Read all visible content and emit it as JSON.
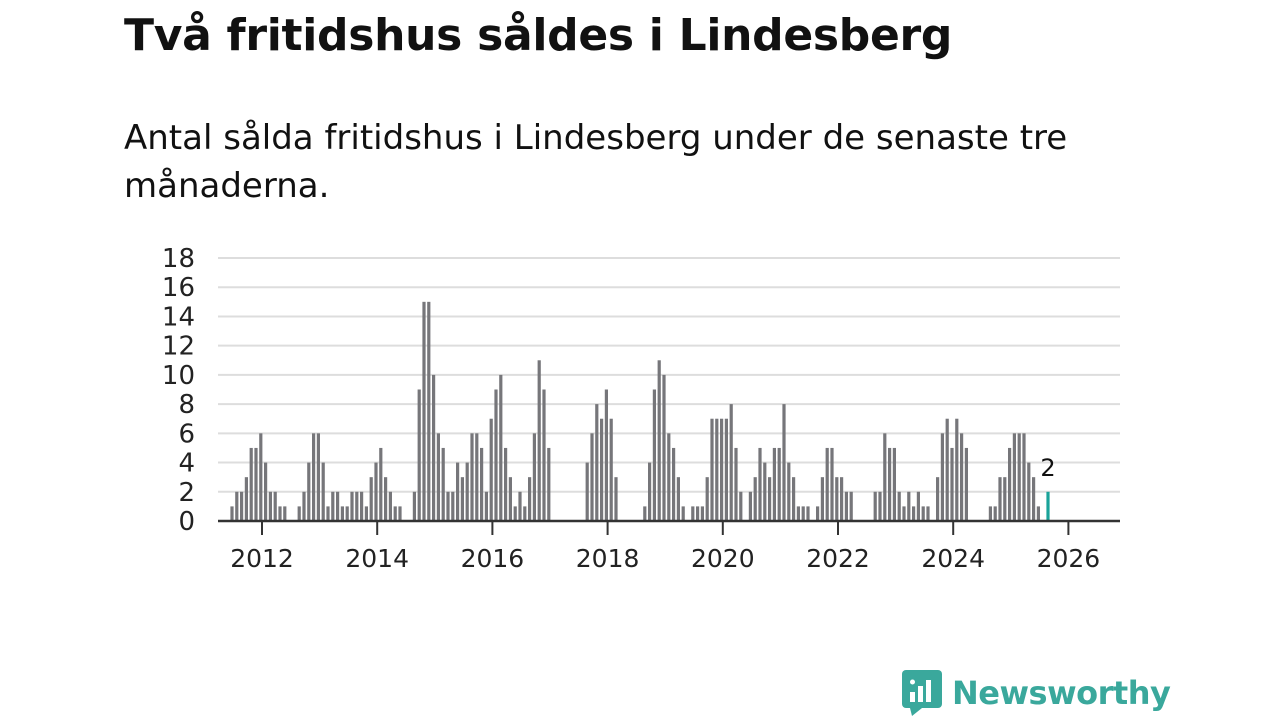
{
  "title": "Två fritidshus såldes i Lindesberg",
  "subtitle": "Antal sålda fritidshus i Lindesberg under de senaste tre månaderna.",
  "brand": {
    "name": "Newsworthy",
    "color": "#3aa89c",
    "logo_icon": "newsworthy-logo-icon"
  },
  "colors": {
    "bar": "#76767a",
    "highlight": "#1aa39a",
    "grid": "#dddddd",
    "axis": "#333333"
  },
  "chart_data": {
    "type": "bar",
    "title": "Två fritidshus såldes i Lindesberg",
    "subtitle": "Antal sålda fritidshus i Lindesberg under de senaste tre månaderna.",
    "xlabel": "",
    "ylabel": "",
    "x_start": "2012-01",
    "x_unit": "month",
    "ylim": [
      0,
      18
    ],
    "yticks": [
      0,
      2,
      4,
      6,
      8,
      10,
      12,
      14,
      16,
      18
    ],
    "xticks": [
      "2012",
      "2014",
      "2016",
      "2018",
      "2020",
      "2022",
      "2024",
      "2026"
    ],
    "grid": true,
    "values": [
      1,
      2,
      2,
      3,
      5,
      5,
      6,
      4,
      2,
      2,
      1,
      1,
      0,
      0,
      1,
      2,
      4,
      6,
      6,
      4,
      1,
      2,
      2,
      1,
      1,
      2,
      2,
      2,
      1,
      3,
      4,
      5,
      3,
      2,
      1,
      1,
      0,
      0,
      2,
      9,
      15,
      15,
      10,
      6,
      5,
      2,
      2,
      4,
      3,
      4,
      6,
      6,
      5,
      2,
      7,
      9,
      10,
      5,
      3,
      1,
      2,
      1,
      3,
      6,
      11,
      9,
      5,
      0,
      0,
      0,
      0,
      0,
      0,
      0,
      4,
      6,
      8,
      7,
      9,
      7,
      3,
      0,
      0,
      0,
      0,
      0,
      1,
      4,
      9,
      11,
      10,
      6,
      5,
      3,
      1,
      0,
      1,
      1,
      1,
      3,
      7,
      7,
      7,
      7,
      8,
      5,
      2,
      0,
      2,
      3,
      5,
      4,
      3,
      5,
      5,
      8,
      4,
      3,
      1,
      1,
      1,
      0,
      1,
      3,
      5,
      5,
      3,
      3,
      2,
      2,
      0,
      0,
      0,
      0,
      2,
      2,
      6,
      5,
      5,
      2,
      1,
      2,
      1,
      2,
      1,
      1,
      0,
      3,
      6,
      7,
      5,
      7,
      6,
      5,
      0,
      0,
      0,
      0,
      1,
      1,
      3,
      3,
      5,
      6,
      6,
      6,
      4,
      3,
      1,
      0,
      2
    ],
    "highlight_last": true,
    "annotations": [
      {
        "text": "2",
        "target": "last"
      }
    ]
  }
}
